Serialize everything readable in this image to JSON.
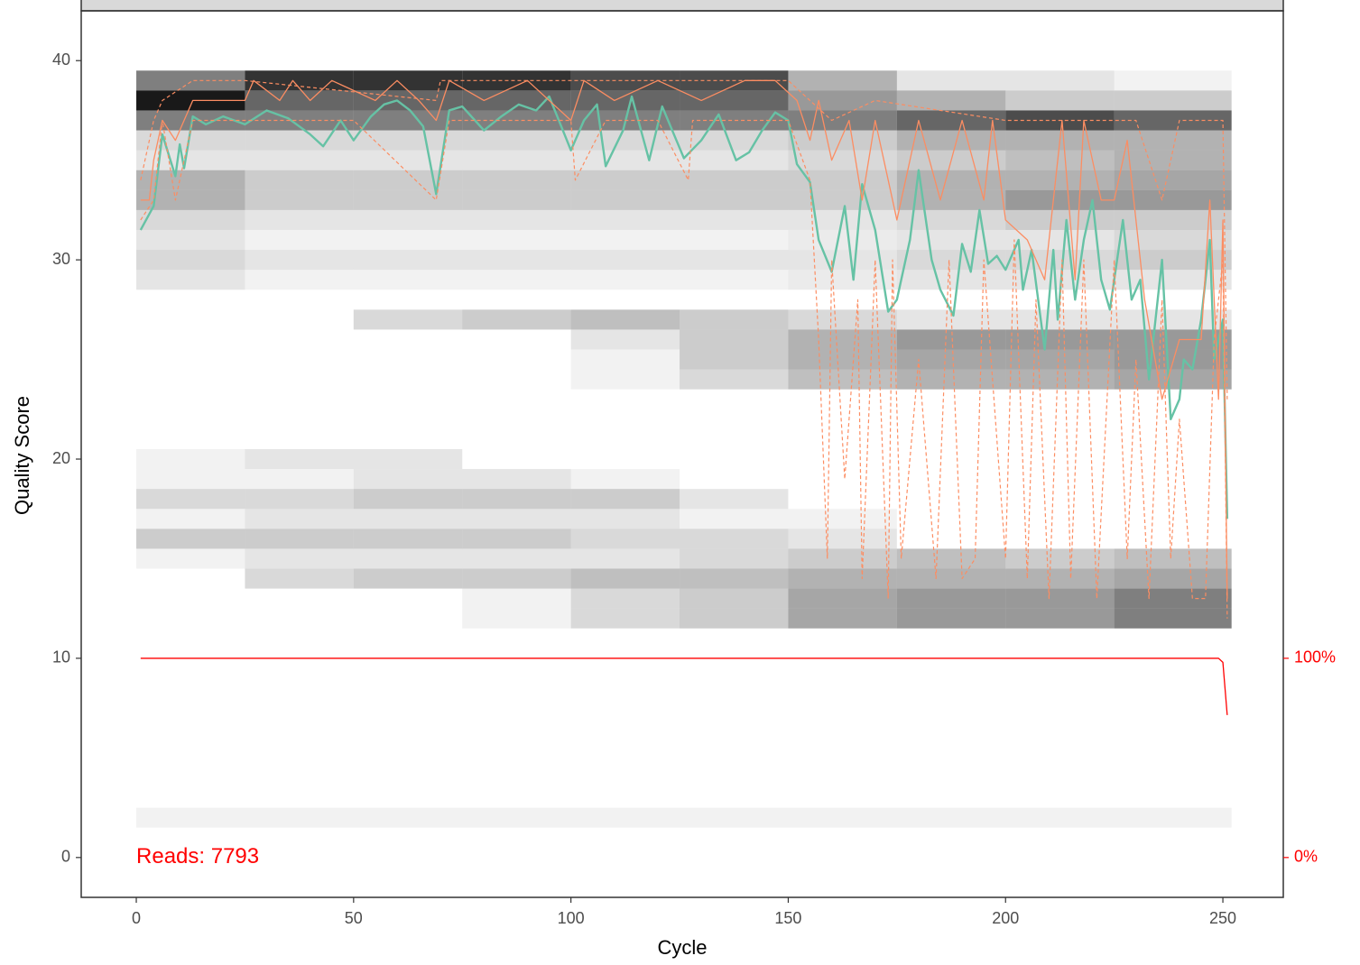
{
  "chart_data": {
    "type": "line",
    "x_label": "Cycle",
    "y_label": "Quality Score",
    "annotation": "Reads:  7793",
    "annotation_color": "#ff0000",
    "xlim": [
      -12.67,
      263.9
    ],
    "xticks": [
      0,
      50,
      100,
      150,
      200,
      250
    ],
    "ylim": [
      -2,
      42.5
    ],
    "yticks": [
      0,
      10,
      20,
      30,
      40
    ],
    "y2lim": [
      -20,
      425
    ],
    "y2ticks": [
      {
        "value": 0,
        "label": "0%"
      },
      {
        "value": 100,
        "label": "100%"
      }
    ],
    "y2color": "#ff0000",
    "heatmap": {
      "bins": [
        0,
        25,
        50,
        75,
        100,
        125,
        150,
        175,
        200,
        225,
        252
      ],
      "rows": [
        {
          "q": 39,
          "values": [
            0.5,
            0.8,
            0.8,
            0.8,
            0.7,
            0.7,
            0.3,
            0.1,
            0.1,
            0.05
          ]
        },
        {
          "q": 38,
          "values": [
            0.9,
            0.6,
            0.6,
            0.6,
            0.6,
            0.6,
            0.4,
            0.3,
            0.2,
            0.2
          ]
        },
        {
          "q": 37,
          "values": [
            0.5,
            0.5,
            0.5,
            0.5,
            0.5,
            0.5,
            0.5,
            0.6,
            0.7,
            0.6
          ]
        },
        {
          "q": 36,
          "values": [
            0.15,
            0.15,
            0.15,
            0.15,
            0.15,
            0.15,
            0.2,
            0.3,
            0.3,
            0.3
          ]
        },
        {
          "q": 35,
          "values": [
            0.1,
            0.1,
            0.1,
            0.1,
            0.1,
            0.1,
            0.15,
            0.2,
            0.25,
            0.3
          ]
        },
        {
          "q": 34,
          "values": [
            0.3,
            0.2,
            0.2,
            0.2,
            0.2,
            0.2,
            0.2,
            0.3,
            0.3,
            0.35
          ]
        },
        {
          "q": 33,
          "values": [
            0.3,
            0.2,
            0.2,
            0.2,
            0.2,
            0.2,
            0.2,
            0.3,
            0.4,
            0.4
          ]
        },
        {
          "q": 32,
          "values": [
            0.15,
            0.1,
            0.1,
            0.1,
            0.1,
            0.1,
            0.1,
            0.15,
            0.2,
            0.2
          ]
        },
        {
          "q": 31,
          "values": [
            0.1,
            0.05,
            0.05,
            0.05,
            0.05,
            0.05,
            0.08,
            0.1,
            0.1,
            0.15
          ]
        },
        {
          "q": 30,
          "values": [
            0.15,
            0.1,
            0.1,
            0.1,
            0.1,
            0.1,
            0.1,
            0.15,
            0.15,
            0.2
          ]
        },
        {
          "q": 29,
          "values": [
            0.1,
            0.05,
            0.05,
            0.05,
            0.05,
            0.05,
            0.08,
            0.1,
            0.1,
            0.1
          ]
        },
        {
          "q": 27,
          "values": [
            0,
            0,
            0.15,
            0.2,
            0.25,
            0.2,
            0.15,
            0.1,
            0.1,
            0.1
          ]
        },
        {
          "q": 26,
          "values": [
            0,
            0,
            0,
            0,
            0.1,
            0.2,
            0.3,
            0.4,
            0.4,
            0.4
          ]
        },
        {
          "q": 25,
          "values": [
            0,
            0,
            0,
            0,
            0.05,
            0.2,
            0.3,
            0.35,
            0.35,
            0.4
          ]
        },
        {
          "q": 24,
          "values": [
            0,
            0,
            0,
            0,
            0.05,
            0.15,
            0.25,
            0.3,
            0.3,
            0.35
          ]
        },
        {
          "q": 20,
          "values": [
            0.05,
            0.1,
            0.1,
            0,
            0,
            0,
            0,
            0,
            0,
            0
          ]
        },
        {
          "q": 19,
          "values": [
            0.05,
            0.05,
            0.1,
            0.1,
            0.05,
            0,
            0,
            0,
            0,
            0
          ]
        },
        {
          "q": 18,
          "values": [
            0.15,
            0.15,
            0.2,
            0.2,
            0.2,
            0.1,
            0,
            0,
            0,
            0
          ]
        },
        {
          "q": 17,
          "values": [
            0.05,
            0.1,
            0.1,
            0.1,
            0.1,
            0.05,
            0.05,
            0,
            0,
            0
          ]
        },
        {
          "q": 16,
          "values": [
            0.2,
            0.2,
            0.2,
            0.2,
            0.15,
            0.15,
            0.1,
            0,
            0,
            0
          ]
        },
        {
          "q": 15,
          "values": [
            0.05,
            0.1,
            0.1,
            0.1,
            0.1,
            0.15,
            0.2,
            0.25,
            0.2,
            0.25
          ]
        },
        {
          "q": 14,
          "values": [
            0,
            0.15,
            0.2,
            0.2,
            0.25,
            0.25,
            0.3,
            0.3,
            0.3,
            0.35
          ]
        },
        {
          "q": 13,
          "values": [
            0,
            0,
            0,
            0.05,
            0.15,
            0.2,
            0.35,
            0.4,
            0.4,
            0.5
          ]
        },
        {
          "q": 12,
          "values": [
            0,
            0,
            0,
            0.05,
            0.15,
            0.2,
            0.35,
            0.4,
            0.4,
            0.5
          ]
        },
        {
          "q": 2,
          "values": [
            0.05,
            0.05,
            0.05,
            0.05,
            0.05,
            0.05,
            0.05,
            0.05,
            0.05,
            0.05
          ]
        }
      ]
    },
    "series": [
      {
        "color": "#66c2a5",
        "dashed": false,
        "width": 2.4,
        "x": [
          1,
          4,
          6,
          9,
          10,
          11,
          13,
          16,
          20,
          25,
          30,
          35,
          40,
          43,
          47,
          50,
          54,
          57,
          60,
          63,
          66,
          69,
          72,
          75,
          80,
          84,
          88,
          92,
          95,
          100,
          103,
          106,
          108,
          112,
          114,
          118,
          121,
          126,
          130,
          134,
          138,
          141,
          144,
          147,
          150,
          152,
          155,
          157,
          160,
          163,
          165,
          167,
          170,
          173,
          175,
          178,
          180,
          183,
          185,
          188,
          190,
          192,
          194,
          196,
          198,
          200,
          203,
          204,
          206,
          209,
          211,
          212,
          214,
          216,
          218,
          220,
          222,
          224,
          227,
          229,
          231,
          233,
          236,
          238,
          240,
          241,
          243,
          245,
          247,
          248,
          250,
          251
        ],
        "values": [
          31.5,
          32.7,
          36.3,
          34.2,
          35.8,
          34.6,
          37.2,
          36.8,
          37.2,
          36.8,
          37.5,
          37.1,
          36.3,
          35.7,
          37,
          36,
          37.2,
          37.8,
          38,
          37.5,
          36.7,
          33.3,
          37.5,
          37.7,
          36.5,
          37.2,
          37.8,
          37.5,
          38.2,
          35.5,
          37,
          37.8,
          34.7,
          36.5,
          38.2,
          35,
          37.7,
          35.1,
          36,
          37.3,
          35,
          35.4,
          36.5,
          37.4,
          37,
          34.8,
          33.9,
          31,
          29.4,
          32.7,
          29,
          33.8,
          31.5,
          27.4,
          28,
          31,
          34.5,
          30,
          28.5,
          27.2,
          30.8,
          29.4,
          32.5,
          29.8,
          30.2,
          29.5,
          31,
          28.5,
          30.5,
          25.5,
          30.5,
          27,
          32,
          28,
          31,
          33,
          29,
          27.5,
          32,
          28,
          29,
          24,
          30,
          22,
          23,
          25,
          24.5,
          27,
          31,
          25,
          27,
          17
        ]
      },
      {
        "color": "#fc8d62",
        "dashed": false,
        "width": 1.3,
        "x": [
          1,
          3,
          4,
          6,
          9,
          11,
          13,
          25,
          27,
          33,
          36,
          40,
          45,
          55,
          60,
          65,
          69,
          72,
          80,
          90,
          100,
          103,
          110,
          120,
          130,
          140,
          147,
          152,
          155,
          157,
          160,
          164,
          167,
          170,
          175,
          180,
          185,
          190,
          195,
          197,
          200,
          205,
          209,
          213,
          216,
          218,
          222,
          225,
          228,
          232,
          236,
          240,
          245,
          247,
          249,
          250,
          251
        ],
        "values": [
          33,
          33,
          35,
          37,
          36,
          37,
          38,
          38,
          39,
          38,
          39,
          38,
          39,
          38,
          39,
          38,
          37,
          39,
          38,
          39,
          37,
          39,
          38,
          39,
          38,
          39,
          39,
          38,
          36,
          38,
          35,
          37,
          33,
          37,
          32,
          37,
          33,
          37,
          33,
          37,
          32,
          31,
          29,
          37,
          29,
          37,
          33,
          33,
          36,
          28,
          23,
          26,
          26,
          33,
          23,
          32,
          13
        ]
      },
      {
        "color": "#fc8d62",
        "dashed": true,
        "width": 1.2,
        "x": [
          1,
          4,
          6,
          13,
          25,
          69,
          70,
          100,
          110,
          150,
          155,
          160,
          170,
          200,
          220,
          230,
          236,
          240,
          245,
          247,
          249,
          250,
          251
        ],
        "values": [
          34,
          37,
          38,
          39,
          39,
          38,
          39,
          39,
          39,
          39,
          38,
          37,
          38,
          37,
          37,
          37,
          33,
          37,
          37,
          37,
          37,
          37,
          23
        ]
      },
      {
        "color": "#fc8d62",
        "dashed": true,
        "width": 1.2,
        "x": [
          1,
          4,
          6,
          9,
          13,
          30,
          50,
          69,
          72,
          100,
          101,
          108,
          120,
          127,
          128,
          140,
          150,
          155,
          157,
          159,
          160,
          163,
          166,
          167,
          170,
          173,
          174,
          176,
          180,
          184,
          187,
          190,
          193,
          195,
          200,
          202,
          205,
          207,
          210,
          213,
          215,
          218,
          221,
          225,
          228,
          230,
          233,
          236,
          238,
          240,
          243,
          246,
          248,
          250,
          251
        ],
        "values": [
          32,
          33,
          37,
          33,
          37,
          37,
          37,
          33,
          37,
          37,
          34,
          37,
          37,
          34,
          37,
          37,
          37,
          34,
          26,
          15,
          30,
          19,
          28,
          14,
          30,
          13,
          30,
          15,
          25,
          14,
          30,
          14,
          15,
          30,
          15,
          31,
          14,
          28,
          13,
          30,
          14,
          30,
          13,
          30,
          15,
          25,
          13,
          28,
          15,
          22,
          13,
          13,
          26,
          30,
          12
        ]
      },
      {
        "color": "#ff0000",
        "dashed": false,
        "width": 1.3,
        "axis": "y2",
        "x": [
          1,
          248,
          249,
          250,
          251
        ],
        "values": [
          100,
          100,
          100,
          98,
          71.5
        ]
      }
    ]
  }
}
